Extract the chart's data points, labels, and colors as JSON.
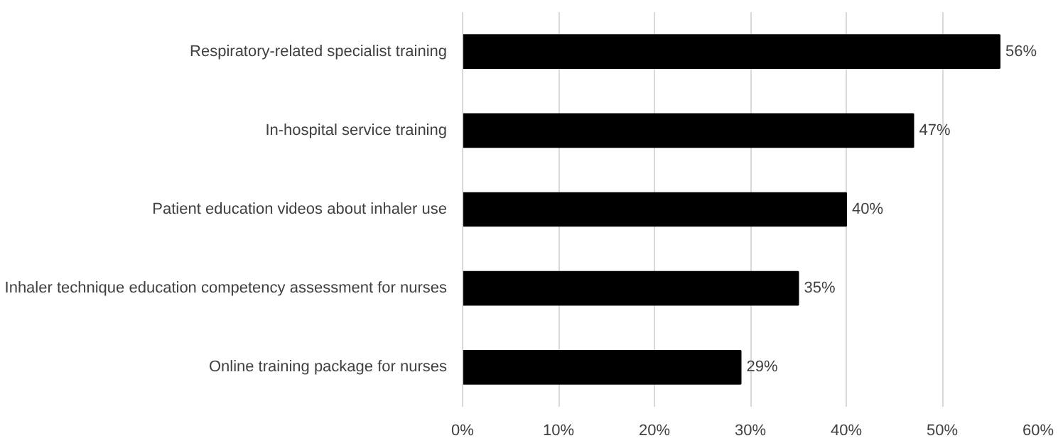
{
  "chart_data": {
    "type": "bar",
    "orientation": "horizontal",
    "categories": [
      "Respiratory-related specialist training",
      "In-hospital service training",
      "Patient education videos about inhaler use",
      "Inhaler technique education competency assessment for nurses",
      "Online training package for nurses"
    ],
    "values": [
      56,
      47,
      40,
      35,
      29
    ],
    "value_labels": [
      "56%",
      "47%",
      "40%",
      "35%",
      "29%"
    ],
    "color": "#000000",
    "xlim": [
      0,
      60
    ],
    "xticks": [
      {
        "value": 0,
        "label": "0%"
      },
      {
        "value": 10,
        "label": "10%"
      },
      {
        "value": 20,
        "label": "20%"
      },
      {
        "value": 30,
        "label": "30%"
      },
      {
        "value": 40,
        "label": "40%"
      },
      {
        "value": 50,
        "label": "50%"
      },
      {
        "value": 60,
        "label": "60%"
      }
    ],
    "grid": "x"
  }
}
